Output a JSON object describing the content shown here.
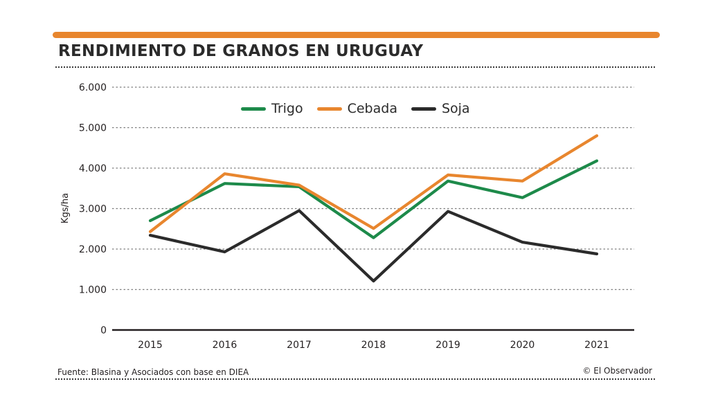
{
  "header": {
    "title": "RENDIMIENTO DE GRANOS EN URUGUAY",
    "accent_color": "#e8862e"
  },
  "footer": {
    "source": "Fuente: Blasina y Asociados con base en DIEA",
    "credit": "© El Observador"
  },
  "chart_data": {
    "type": "line",
    "title": "RENDIMIENTO DE GRANOS EN URUGUAY",
    "xlabel": "",
    "ylabel": "Kgs/ha",
    "x": [
      "2015",
      "2016",
      "2017",
      "2018",
      "2019",
      "2020",
      "2021"
    ],
    "ylim": [
      0,
      6000
    ],
    "yticks": [
      0,
      1000,
      2000,
      3000,
      4000,
      5000,
      6000
    ],
    "ytick_labels": [
      "0",
      "1.000",
      "2.000",
      "3.000",
      "4.000",
      "5.000",
      "6.000"
    ],
    "grid": "horizontal dotted",
    "legend_position": "top-center",
    "series": [
      {
        "name": "Trigo",
        "color": "#1d8a4a",
        "values": [
          2700,
          3620,
          3540,
          2280,
          3680,
          3270,
          4180
        ]
      },
      {
        "name": "Cebada",
        "color": "#e8862e",
        "values": [
          2430,
          3860,
          3580,
          2510,
          3830,
          3680,
          4800
        ]
      },
      {
        "name": "Soja",
        "color": "#2b2b2b",
        "values": [
          2340,
          1930,
          2950,
          1210,
          2930,
          2170,
          1880
        ]
      }
    ]
  }
}
